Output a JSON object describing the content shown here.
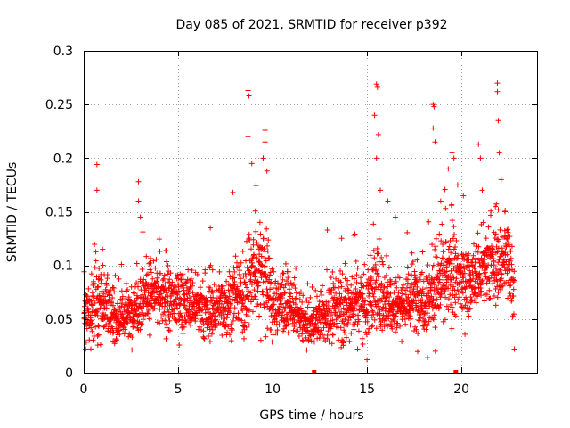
{
  "colors": {
    "series": "#ff0000",
    "axes": "#000000",
    "grid": "#a0a0a0",
    "background": "#ffffff"
  },
  "chart_data": {
    "type": "scatter",
    "title": "Day 085 of 2021, SRMTID for receiver p392",
    "xlabel": "GPS time / hours",
    "ylabel": "SRMTID / TECUs",
    "xlim": [
      0,
      24
    ],
    "ylim": [
      0,
      0.3
    ],
    "xticks": [
      0,
      5,
      10,
      15,
      20
    ],
    "xtick_labels": [
      "0",
      "5",
      "10",
      "15",
      "20"
    ],
    "yticks": [
      0,
      0.05,
      0.1,
      0.15,
      0.2,
      0.25,
      0.3
    ],
    "ytick_labels": [
      "0",
      "0.05",
      "0.1",
      "0.15",
      "0.2",
      "0.25",
      "0.3"
    ],
    "grid": true,
    "marker": "plus",
    "x_range_data": [
      0.0,
      22.8
    ],
    "baseline_markers": {
      "shape": "square",
      "x": [
        12.2,
        19.7
      ],
      "y": 0
    },
    "envelope_hours": [
      0,
      0.5,
      1,
      1.5,
      2,
      2.5,
      3,
      3.5,
      4,
      4.5,
      5,
      5.5,
      6,
      6.5,
      7,
      7.5,
      8,
      8.5,
      9,
      9.5,
      10,
      10.5,
      11,
      11.5,
      12,
      12.5,
      13,
      13.5,
      14,
      14.5,
      15,
      15.5,
      16,
      16.5,
      17,
      17.5,
      18,
      18.5,
      19,
      19.5,
      20,
      20.5,
      21,
      21.5,
      22,
      22.5,
      22.8
    ],
    "typical_srmtid": [
      0.05,
      0.065,
      0.07,
      0.05,
      0.052,
      0.055,
      0.07,
      0.075,
      0.07,
      0.065,
      0.07,
      0.065,
      0.06,
      0.055,
      0.06,
      0.065,
      0.068,
      0.07,
      0.09,
      0.1,
      0.06,
      0.065,
      0.06,
      0.05,
      0.045,
      0.05,
      0.055,
      0.06,
      0.06,
      0.07,
      0.065,
      0.08,
      0.07,
      0.065,
      0.065,
      0.07,
      0.07,
      0.075,
      0.085,
      0.09,
      0.085,
      0.085,
      0.09,
      0.1,
      0.1,
      0.11,
      0.08
    ],
    "scatter_spread": [
      0.02,
      0.03,
      0.03,
      0.02,
      0.02,
      0.02,
      0.03,
      0.025,
      0.025,
      0.025,
      0.025,
      0.025,
      0.02,
      0.025,
      0.025,
      0.025,
      0.025,
      0.03,
      0.04,
      0.045,
      0.03,
      0.025,
      0.02,
      0.02,
      0.015,
      0.02,
      0.025,
      0.025,
      0.03,
      0.03,
      0.03,
      0.04,
      0.03,
      0.025,
      0.025,
      0.03,
      0.03,
      0.035,
      0.04,
      0.035,
      0.03,
      0.025,
      0.03,
      0.03,
      0.035,
      0.035,
      0.03
    ],
    "peaks": [
      {
        "x": 0.7,
        "y": 0.194
      },
      {
        "x": 0.7,
        "y": 0.17
      },
      {
        "x": 1.0,
        "y": 0.115
      },
      {
        "x": 2.9,
        "y": 0.178
      },
      {
        "x": 2.9,
        "y": 0.16
      },
      {
        "x": 3.0,
        "y": 0.145
      },
      {
        "x": 6.7,
        "y": 0.135
      },
      {
        "x": 7.9,
        "y": 0.168
      },
      {
        "x": 8.7,
        "y": 0.263
      },
      {
        "x": 8.75,
        "y": 0.258
      },
      {
        "x": 8.7,
        "y": 0.22
      },
      {
        "x": 8.9,
        "y": 0.195
      },
      {
        "x": 9.6,
        "y": 0.226
      },
      {
        "x": 9.6,
        "y": 0.215
      },
      {
        "x": 9.5,
        "y": 0.2
      },
      {
        "x": 9.7,
        "y": 0.188
      },
      {
        "x": 12.9,
        "y": 0.133
      },
      {
        "x": 14.3,
        "y": 0.128
      },
      {
        "x": 15.5,
        "y": 0.269
      },
      {
        "x": 15.55,
        "y": 0.266
      },
      {
        "x": 15.4,
        "y": 0.24
      },
      {
        "x": 15.6,
        "y": 0.222
      },
      {
        "x": 15.5,
        "y": 0.2
      },
      {
        "x": 15.7,
        "y": 0.17
      },
      {
        "x": 16.1,
        "y": 0.16
      },
      {
        "x": 16.5,
        "y": 0.145
      },
      {
        "x": 18.5,
        "y": 0.25
      },
      {
        "x": 18.55,
        "y": 0.248
      },
      {
        "x": 18.5,
        "y": 0.228
      },
      {
        "x": 18.6,
        "y": 0.215
      },
      {
        "x": 18.9,
        "y": 0.16
      },
      {
        "x": 19.5,
        "y": 0.205
      },
      {
        "x": 19.6,
        "y": 0.2
      },
      {
        "x": 19.3,
        "y": 0.19
      },
      {
        "x": 19.8,
        "y": 0.175
      },
      {
        "x": 20.1,
        "y": 0.165
      },
      {
        "x": 20.9,
        "y": 0.213
      },
      {
        "x": 21.0,
        "y": 0.2
      },
      {
        "x": 21.1,
        "y": 0.17
      },
      {
        "x": 21.9,
        "y": 0.27
      },
      {
        "x": 21.9,
        "y": 0.262
      },
      {
        "x": 21.95,
        "y": 0.235
      },
      {
        "x": 22.0,
        "y": 0.205
      },
      {
        "x": 22.1,
        "y": 0.18
      },
      {
        "x": 22.3,
        "y": 0.15
      },
      {
        "x": 15.0,
        "y": 0.012
      },
      {
        "x": 18.2,
        "y": 0.014
      },
      {
        "x": 14.5,
        "y": 0.022
      },
      {
        "x": 22.8,
        "y": 0.022
      },
      {
        "x": 0.1,
        "y": 0.022
      }
    ]
  }
}
